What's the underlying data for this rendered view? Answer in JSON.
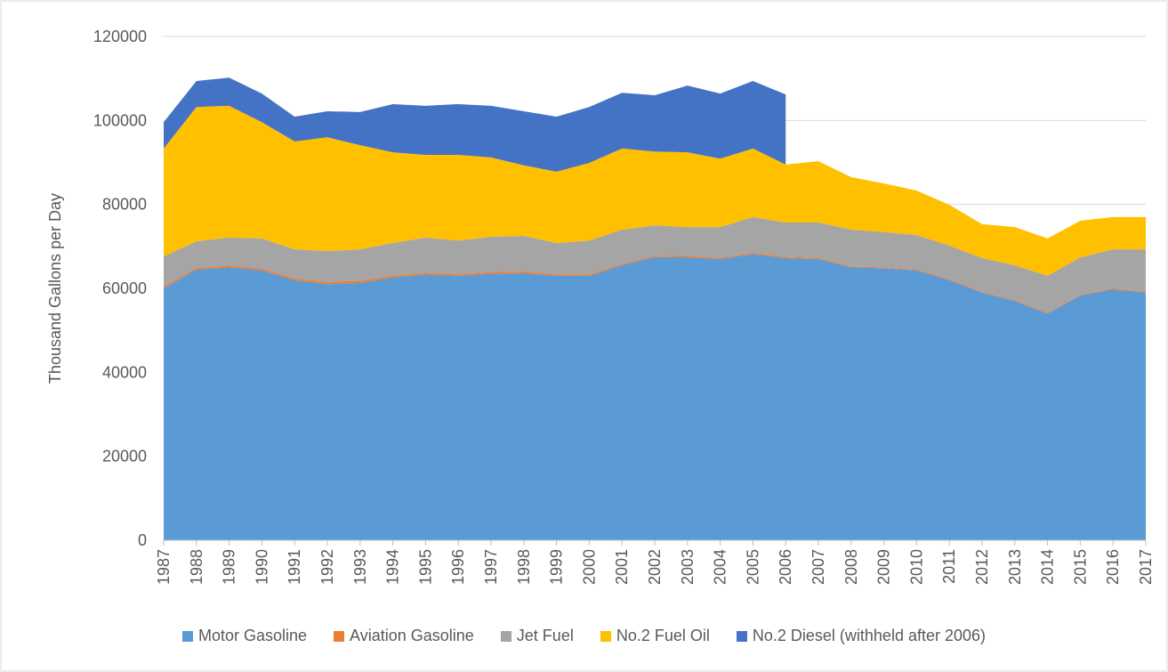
{
  "chart_data": {
    "type": "stacked_area",
    "y_label": "Thousand Gallons per Day",
    "categories": [
      "1987",
      "1988",
      "1989",
      "1990",
      "1991",
      "1992",
      "1993",
      "1994",
      "1995",
      "1996",
      "1997",
      "1998",
      "1999",
      "2000",
      "2001",
      "2002",
      "2003",
      "2004",
      "2005",
      "2006",
      "2007",
      "2008",
      "2009",
      "2010",
      "2011",
      "2012",
      "2013",
      "2014",
      "2015",
      "2016",
      "2017"
    ],
    "series": [
      {
        "name": "Motor Gasoline",
        "color": "#5b9bd5",
        "values": [
          60000,
          64500,
          65000,
          64300,
          62000,
          61000,
          61300,
          62600,
          63300,
          63000,
          63500,
          63600,
          63000,
          63000,
          65500,
          67500,
          67400,
          67000,
          68200,
          67200,
          67000,
          65000,
          64800,
          64300,
          62000,
          59000,
          57000,
          54000,
          58300,
          59800,
          59000
        ]
      },
      {
        "name": "Aviation Gasoline",
        "color": "#ed7d31",
        "values": [
          400,
          400,
          400,
          400,
          400,
          500,
          500,
          400,
          400,
          400,
          400,
          400,
          300,
          300,
          300,
          300,
          300,
          300,
          300,
          300,
          300,
          200,
          200,
          200,
          200,
          200,
          200,
          200,
          200,
          200,
          200
        ]
      },
      {
        "name": "Jet Fuel",
        "color": "#a5a5a5",
        "values": [
          7200,
          6300,
          6700,
          7200,
          6900,
          7400,
          7500,
          7800,
          8400,
          8000,
          8400,
          8500,
          7500,
          8100,
          8200,
          7200,
          6900,
          7300,
          8500,
          8200,
          8400,
          8800,
          8400,
          8200,
          8000,
          8000,
          8300,
          8800,
          8900,
          9300,
          10100
        ]
      },
      {
        "name": "No.2 Fuel Oil",
        "color": "#ffc000",
        "values": [
          25700,
          32000,
          31400,
          27700,
          25700,
          27100,
          24800,
          21600,
          19700,
          20400,
          18900,
          16800,
          17000,
          18500,
          19300,
          17600,
          17800,
          16300,
          16300,
          13800,
          14600,
          12500,
          11600,
          10600,
          9700,
          8100,
          9100,
          8900,
          8700,
          7700,
          7700
        ]
      },
      {
        "name": "No.2 Diesel (withheld after 2006)",
        "color": "#4472c4",
        "values": [
          6300,
          6200,
          6700,
          6800,
          5900,
          6200,
          7900,
          11500,
          11700,
          12100,
          12300,
          12900,
          13100,
          13300,
          13300,
          13400,
          15900,
          15500,
          16100,
          16700,
          null,
          null,
          null,
          null,
          null,
          null,
          null,
          null,
          null,
          null,
          null
        ]
      }
    ],
    "ylim": [
      0,
      120000
    ],
    "yticks": [
      0,
      20000,
      40000,
      60000,
      80000,
      100000,
      120000
    ],
    "grid": true,
    "legend": "bottom"
  }
}
